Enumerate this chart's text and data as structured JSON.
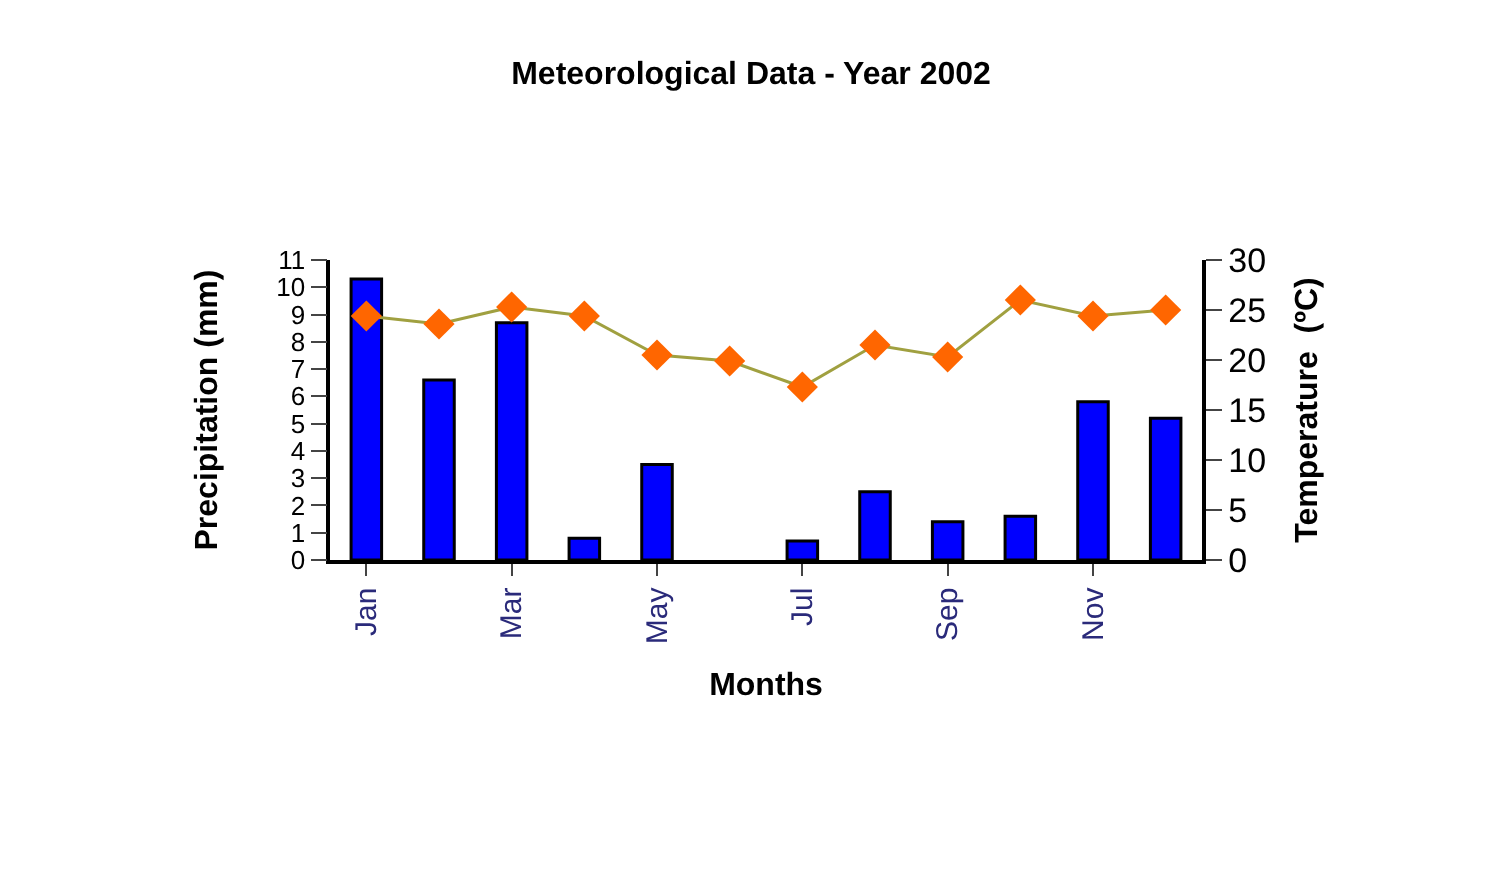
{
  "chart_data": {
    "type": "bar",
    "title": "Meteorological Data - Year 2002",
    "xlabel": "Months",
    "ylabel": "Precipitation (mm)",
    "y2label": "Temperature  (ºC)",
    "categories": [
      "Jan",
      null,
      "Mar",
      null,
      "May",
      null,
      "Jul",
      null,
      "Sep",
      null,
      "Nov",
      null
    ],
    "series": [
      {
        "color": "#0000ff",
        "values": [
          10.3,
          6.6,
          8.7,
          0.8,
          3.5,
          null,
          0.7,
          2.5,
          1.4,
          1.6,
          5.8,
          5.2
        ]
      },
      {
        "type": "line",
        "axis": "y2",
        "color": "#ff6600",
        "marker": "diamond",
        "values": [
          24.4,
          23.6,
          25.3,
          24.4,
          20.5,
          19.9,
          17.3,
          21.5,
          20.3,
          26,
          24.4,
          25
        ]
      }
    ],
    "ylim": [
      0,
      11
    ],
    "yticks": [
      0,
      1,
      2,
      3,
      4,
      5,
      6,
      7,
      8,
      9,
      10,
      11
    ],
    "y2lim": [
      0,
      30
    ],
    "y2ticks": [
      0,
      5,
      10,
      15,
      20,
      25,
      30
    ],
    "legend": false
  }
}
